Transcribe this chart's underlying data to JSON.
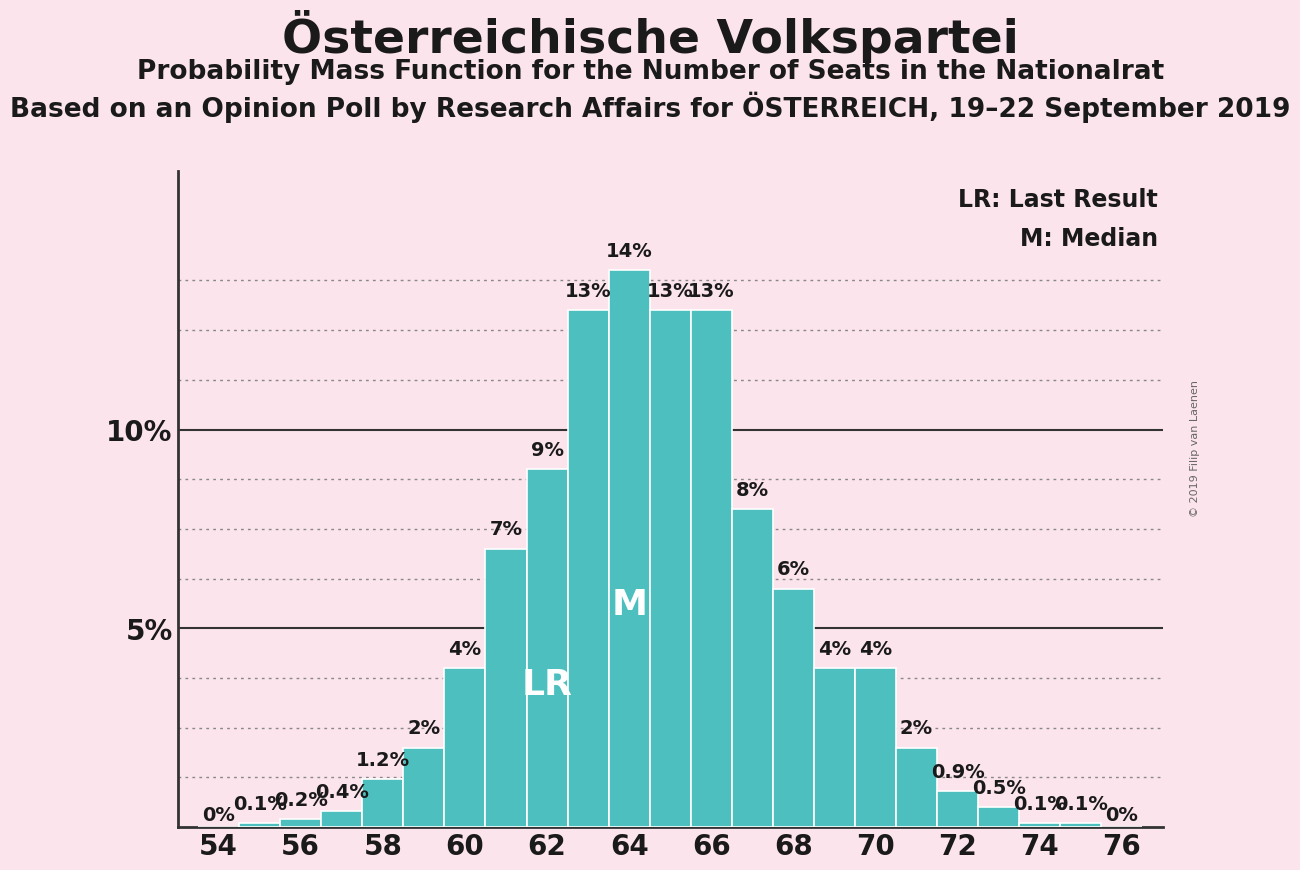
{
  "title": "Österreichische Volkspartei",
  "subtitle1": "Probability Mass Function for the Number of Seats in the Nationalrat",
  "subtitle2": "Based on an Opinion Poll by Research Affairs for ÖSTERREICH, 19–22 September 2019",
  "copyright": "© 2019 Filip van Laenen",
  "legend_lr": "LR: Last Result",
  "legend_m": "M: Median",
  "background_color": "#fce4ec",
  "bar_color": "#4dbfbf",
  "bar_edge_color": "#ffffff",
  "seats": [
    54,
    55,
    56,
    57,
    58,
    59,
    60,
    61,
    62,
    63,
    64,
    65,
    66,
    67,
    68,
    69,
    70,
    71,
    72,
    73,
    74,
    75,
    76
  ],
  "probabilities": [
    0.0,
    0.1,
    0.2,
    0.4,
    1.2,
    2.0,
    4.0,
    7.0,
    9.0,
    13.0,
    14.0,
    13.0,
    13.0,
    8.0,
    6.0,
    4.0,
    4.0,
    2.0,
    0.9,
    0.5,
    0.1,
    0.1,
    0.0
  ],
  "labels": [
    "0%",
    "0.1%",
    "0.2%",
    "0.4%",
    "1.2%",
    "2%",
    "4%",
    "7%",
    "9%",
    "13%",
    "14%",
    "13%",
    "13%",
    "8%",
    "6%",
    "4%",
    "4%",
    "2%",
    "0.9%",
    "0.5%",
    "0.1%",
    "0.1%",
    "0%"
  ],
  "lr_seat": 62,
  "median_seat": 64,
  "ylim": [
    0,
    16.5
  ],
  "xlim": [
    53.0,
    77.0
  ],
  "xticks": [
    54,
    56,
    58,
    60,
    62,
    64,
    66,
    68,
    70,
    72,
    74,
    76
  ],
  "title_fontsize": 34,
  "subtitle1_fontsize": 19,
  "subtitle2_fontsize": 19,
  "axis_label_fontsize": 20,
  "bar_label_fontsize": 14,
  "legend_fontsize": 17,
  "lr_label_fontsize": 26,
  "m_label_fontsize": 26,
  "solid_gridlines": [
    5.0,
    10.0
  ],
  "dotted_gridlines": [
    1.25,
    2.5,
    3.75,
    6.25,
    7.5,
    8.75,
    11.25,
    12.5,
    13.75
  ]
}
